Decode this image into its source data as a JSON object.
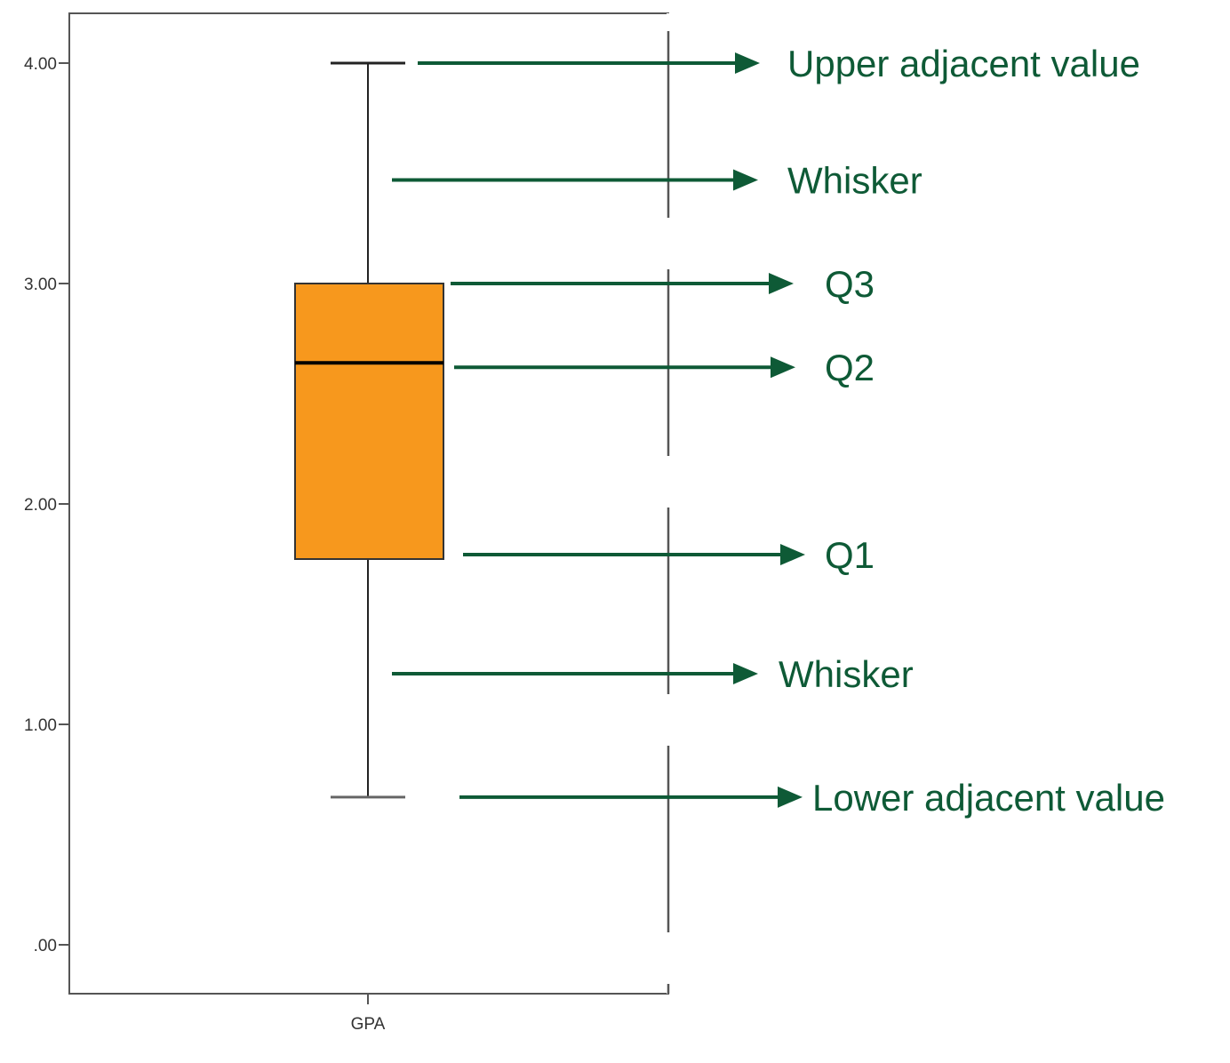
{
  "chart_data": {
    "type": "box",
    "categories": [
      "GPA"
    ],
    "box": {
      "category": "GPA",
      "upper_adjacent": 4.0,
      "q3": 3.0,
      "median": 2.64,
      "q1": 1.75,
      "lower_adjacent": 0.67
    },
    "ylim": [
      -0.22,
      4.23
    ],
    "yticks": [
      0,
      1,
      2,
      3,
      4
    ],
    "ytick_labels": [
      ".00",
      "1.00",
      "2.00",
      "3.00",
      "4.00"
    ],
    "xlabel": "",
    "ylabel": "",
    "grid": false,
    "colors": {
      "box_fill": "#F7981D",
      "annotation": "#0E5A36",
      "axis": "#555555"
    },
    "annotations": [
      {
        "label": "Upper adjacent value",
        "y": 4.0
      },
      {
        "label": "Whisker",
        "y": 3.47
      },
      {
        "label": "Q3",
        "y": 3.0
      },
      {
        "label": "Q2",
        "y": 2.62
      },
      {
        "label": "Q1",
        "y": 1.77
      },
      {
        "label": "Whisker",
        "y": 1.23
      },
      {
        "label": "Lower adjacent value",
        "y": 0.67
      }
    ]
  }
}
